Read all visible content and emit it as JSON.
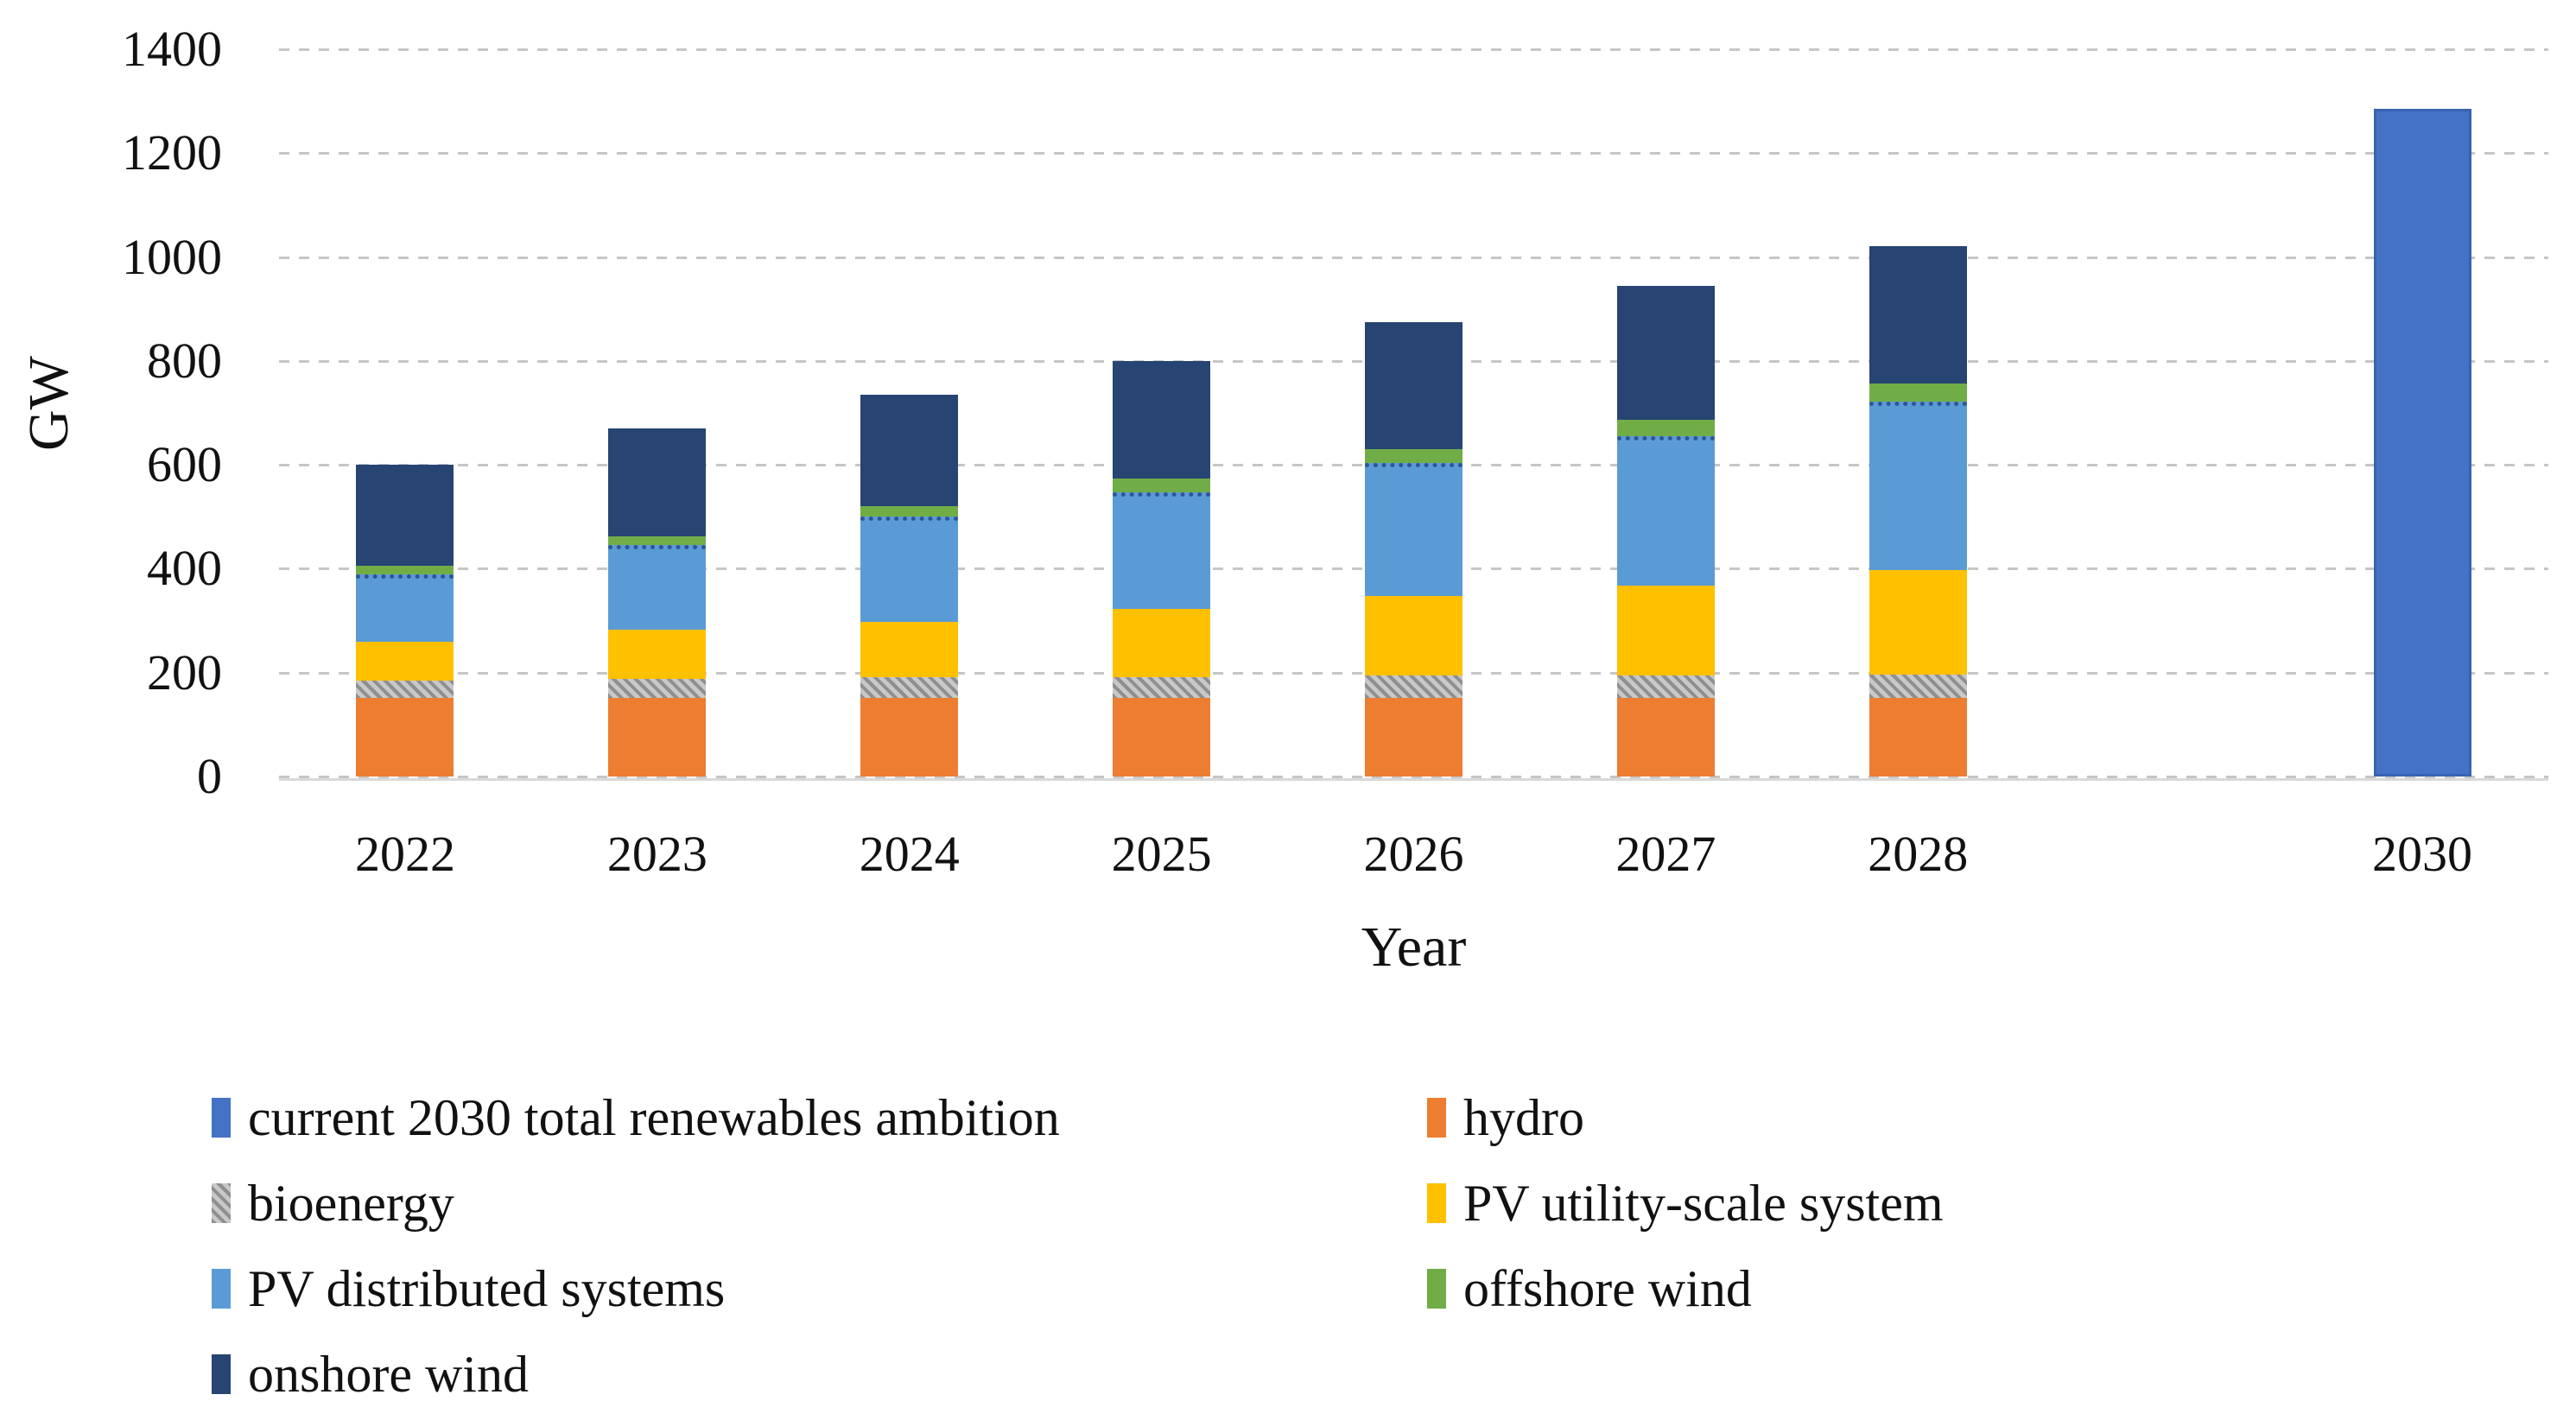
{
  "figure": {
    "background": "#ffffff",
    "y_axis_unit_label": "GW",
    "x_axis_title": "Year"
  },
  "chart_data": {
    "type": "bar",
    "subtype": "stacked-column",
    "title": "",
    "xlabel": "Year",
    "ylabel": "GW",
    "ylim": [
      0,
      1400
    ],
    "y_ticks": [
      0,
      200,
      400,
      600,
      800,
      1000,
      1200,
      1400
    ],
    "grid": "horizontal-dashed",
    "categories": [
      "2022",
      "2023",
      "2024",
      "2025",
      "2026",
      "2027",
      "2028",
      "2030"
    ],
    "category_slots_total": 9,
    "note_missing_category": "2029 slot is empty",
    "stack_order": [
      "ambition",
      "hydro",
      "bioenergy",
      "pv_utility",
      "pv_distributed",
      "offshore",
      "onshore"
    ],
    "series": {
      "ambition": {
        "label": "current 2030 total renewables ambition",
        "color": "#4472C4",
        "values": [
          null,
          null,
          null,
          null,
          null,
          null,
          null,
          1285
        ]
      },
      "hydro": {
        "label": "hydro",
        "color": "#ED7D31",
        "values": [
          152,
          152,
          152,
          152,
          152,
          152,
          152,
          null
        ]
      },
      "bioenergy": {
        "label": "bioenergy",
        "color": "#A6A6A6",
        "pattern": "diagonal-hatch",
        "values": [
          32,
          36,
          39,
          40,
          42,
          43,
          44,
          null
        ]
      },
      "pv_utility": {
        "label": "PV utility-scale system",
        "color": "#FFC000",
        "values": [
          75,
          94,
          106,
          130,
          154,
          173,
          201,
          null
        ]
      },
      "pv_distributed": {
        "label": "PV distributed systems",
        "color": "#5B9BD5",
        "values": [
          131,
          164,
          203,
          225,
          256,
          288,
          325,
          null
        ]
      },
      "offshore": {
        "label": "offshore wind",
        "color": "#70AD47",
        "values": [
          16,
          17,
          20,
          26,
          27,
          31,
          35,
          null
        ]
      },
      "onshore": {
        "label": "onshore wind",
        "color": "#274472",
        "values": [
          194,
          207,
          215,
          227,
          244,
          258,
          263,
          null
        ]
      }
    },
    "totals_by_category": [
      600,
      670,
      735,
      800,
      875,
      945,
      1020,
      1285
    ],
    "legend_position": "bottom-two-columns",
    "legend_columns": [
      [
        "ambition",
        "bioenergy",
        "pv_distributed",
        "onshore"
      ],
      [
        "hydro",
        "pv_utility",
        "offshore"
      ]
    ]
  }
}
